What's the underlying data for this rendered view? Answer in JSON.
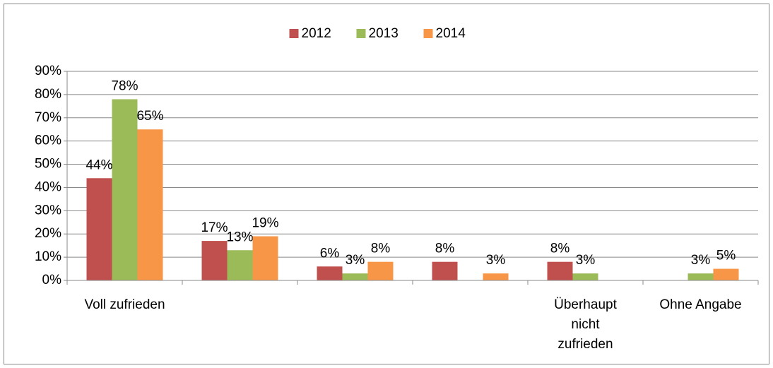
{
  "chart_data": {
    "type": "bar",
    "categories": [
      "Voll zufrieden",
      null,
      null,
      null,
      "Überhaupt nicht zufrieden",
      "Ohne Angabe"
    ],
    "series": [
      {
        "name": "2012",
        "color": "#c0504d",
        "values": [
          44,
          17,
          6,
          8,
          8,
          null
        ],
        "value_labels": [
          "44%",
          "17%",
          "6%",
          "8%",
          "8%",
          null
        ]
      },
      {
        "name": "2013",
        "color": "#9bbb59",
        "values": [
          78,
          13,
          3,
          null,
          3,
          3
        ],
        "value_labels": [
          "78%",
          "13%",
          "3%",
          null,
          "3%",
          "3%"
        ]
      },
      {
        "name": "2014",
        "color": "#f79646",
        "values": [
          65,
          19,
          8,
          3,
          null,
          5
        ],
        "value_labels": [
          "65%",
          "19%",
          "8%",
          "3%",
          null,
          "5%"
        ]
      }
    ],
    "ylim": [
      0,
      90
    ],
    "yticks": [
      {
        "value": 0,
        "label": "0%"
      },
      {
        "value": 10,
        "label": "10%"
      },
      {
        "value": 20,
        "label": "20%"
      },
      {
        "value": 30,
        "label": "30%"
      },
      {
        "value": 40,
        "label": "40%"
      },
      {
        "value": 50,
        "label": "50%"
      },
      {
        "value": 60,
        "label": "60%"
      },
      {
        "value": 70,
        "label": "70%"
      },
      {
        "value": 80,
        "label": "80%"
      },
      {
        "value": 90,
        "label": "90%"
      }
    ],
    "grid": true,
    "legend": "top"
  }
}
